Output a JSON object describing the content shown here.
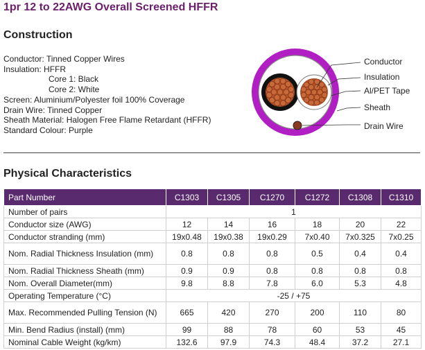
{
  "title": "1pr 12 to 22AWG Overall Screened HFFR",
  "construction": {
    "heading": "Construction",
    "lines": [
      {
        "text": "Conductor: Tinned Copper Wires",
        "indent": false
      },
      {
        "text": "Insulation: HFFR",
        "indent": false
      },
      {
        "text": "Core 1: Black",
        "indent": true
      },
      {
        "text": "Core 2: White",
        "indent": true
      },
      {
        "text": "Screen: Aluminium/Polyester foil 100% Coverage",
        "indent": false
      },
      {
        "text": "Drain Wire: Tinned Copper",
        "indent": false
      },
      {
        "text": "Sheath Material: Halogen Free Flame Retardant (HFFR)",
        "indent": false
      },
      {
        "text": "Standard Colour: Purple",
        "indent": false
      }
    ]
  },
  "diagram": {
    "labels": {
      "conductor": "Conductor",
      "insulation": "Insulation",
      "tape": "Al/PET Tape",
      "sheath": "Sheath",
      "drain": "Drain Wire"
    },
    "colors": {
      "sheath": "#b11fc4",
      "conductor": "#b5532a",
      "core1_insulation": "#111111",
      "core2_insulation": "#ffffff"
    }
  },
  "physical": {
    "heading": "Physical Characteristics",
    "header": [
      "Part Number",
      "C1303",
      "C1305",
      "C1270",
      "C1272",
      "C1308",
      "C1310"
    ],
    "pairs_row": {
      "label": "Number of pairs",
      "value": "1"
    },
    "rows": [
      {
        "label": "Conductor size (AWG)",
        "values": [
          "12",
          "14",
          "16",
          "18",
          "20",
          "22"
        ]
      },
      {
        "label": "Conductor stranding (mm)",
        "values": [
          "19x0.48",
          "19x0.38",
          "19x0.29",
          "7x0.40",
          "7x0.325",
          "7x0.25"
        ]
      },
      {
        "label": "Nom. Radial Thickness Insulation (mm)",
        "values": [
          "0.8",
          "0.8",
          "0.8",
          "0.5",
          "0.4",
          "0.4"
        ],
        "tall": true
      },
      {
        "label": "Nom. Radial Thickness Sheath (mm)",
        "values": [
          "0.9",
          "0.9",
          "0.8",
          "0.8",
          "0.8",
          "0.8"
        ]
      },
      {
        "label": "Nom. Overall Diameter(mm)",
        "values": [
          "9.8",
          "8.8",
          "7.8",
          "6.0",
          "5.3",
          "4.8"
        ]
      }
    ],
    "temp_row": {
      "label": "Operating Temperature (°C)",
      "value": "-25 / +75"
    },
    "rows2": [
      {
        "label": "Max. Recommended Pulling Tension (N)",
        "values": [
          "665",
          "420",
          "270",
          "200",
          "110",
          "80"
        ],
        "tall": true
      },
      {
        "label": "Min. Bend Radius (install) (mm)",
        "values": [
          "99",
          "88",
          "78",
          "60",
          "53",
          "45"
        ]
      },
      {
        "label": "Nominal Cable Weight (kg/km)",
        "values": [
          "132.6",
          "97.9",
          "74.3",
          "48.4",
          "37.2",
          "27.1"
        ]
      }
    ]
  }
}
